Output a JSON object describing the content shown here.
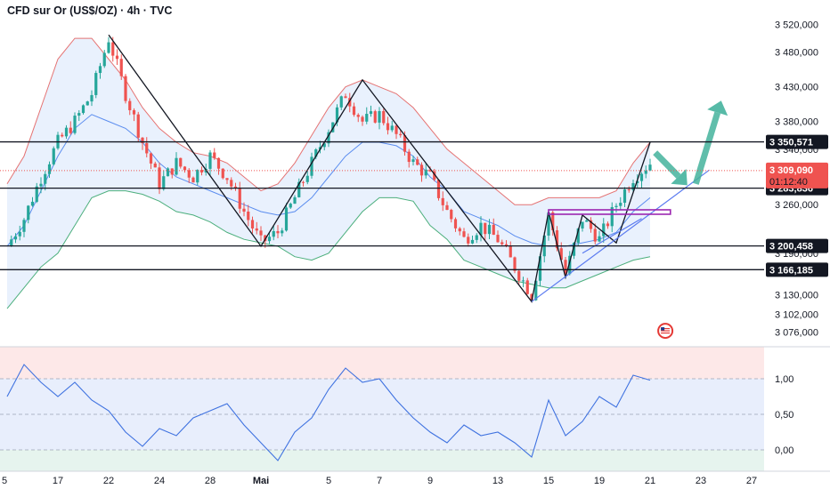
{
  "header": {
    "title": "CFD sur Or (US$/OZ) · 4h · TVC"
  },
  "flag_icon": "us-flag-icon",
  "colors": {
    "up": "#26a69a",
    "down": "#ef5350",
    "level": "#131722",
    "band_upper": "#e57373",
    "band_lower": "#4caf7d",
    "band_mid": "#5b8def",
    "band_fill": "#e3eefc",
    "oscillator": "#3f72e0",
    "arrow": "#45b39d",
    "purple": "#9c27b0",
    "trendline": "#5b7bf0"
  },
  "chart_data": {
    "type": "candlestick",
    "symbol": "CFD sur Or (US$/OZ)",
    "timeframe": "4h",
    "source": "TVC",
    "price_axis": {
      "range": [
        3055,
        3545
      ],
      "ticks": [
        3520,
        3480,
        3430,
        3380,
        3340,
        3260,
        3190,
        3130,
        3102,
        3076
      ],
      "tick_labels": [
        "3 520,000",
        "3 480,000",
        "3 430,000",
        "3 380,000",
        "3 340,000",
        "3 260,000",
        "3 190,000",
        "3 130,000",
        "3 102,000",
        "3 076,000"
      ]
    },
    "time_axis": {
      "labels": [
        "5",
        "17",
        "22",
        "24",
        "28",
        "Mai",
        "5",
        "7",
        "9",
        "13",
        "15",
        "19",
        "21",
        "23",
        "27"
      ],
      "positions": [
        0,
        3,
        6,
        9,
        12,
        15,
        19,
        22,
        25,
        29,
        32,
        35,
        38,
        41,
        44
      ]
    },
    "horizontal_levels": [
      {
        "value": 3350.571,
        "label": "3 350,571"
      },
      {
        "value": 3283.836,
        "label": "3 283,836"
      },
      {
        "value": 3200.458,
        "label": "3 200,458"
      },
      {
        "value": 3166.185,
        "label": "3 166,185"
      }
    ],
    "current_price": {
      "value": 3309.09,
      "label": "3 309,090",
      "countdown": "01:12:40"
    },
    "close_path": [
      [
        0,
        3200
      ],
      [
        1,
        3240
      ],
      [
        2,
        3300
      ],
      [
        3,
        3350
      ],
      [
        4,
        3380
      ],
      [
        5,
        3420
      ],
      [
        6,
        3500
      ],
      [
        7,
        3420
      ],
      [
        8,
        3350
      ],
      [
        9,
        3290
      ],
      [
        10,
        3320
      ],
      [
        11,
        3300
      ],
      [
        12,
        3330
      ],
      [
        13,
        3300
      ],
      [
        14,
        3250
      ],
      [
        15,
        3205
      ],
      [
        16,
        3220
      ],
      [
        17,
        3270
      ],
      [
        18,
        3320
      ],
      [
        19,
        3370
      ],
      [
        20,
        3420
      ],
      [
        21,
        3380
      ],
      [
        22,
        3390
      ],
      [
        23,
        3360
      ],
      [
        24,
        3320
      ],
      [
        25,
        3300
      ],
      [
        26,
        3250
      ],
      [
        27,
        3210
      ],
      [
        28,
        3230
      ],
      [
        29,
        3210
      ],
      [
        30,
        3170
      ],
      [
        31,
        3130
      ],
      [
        32,
        3245
      ],
      [
        33,
        3160
      ],
      [
        34,
        3240
      ],
      [
        35,
        3210
      ],
      [
        36,
        3260
      ],
      [
        37,
        3300
      ],
      [
        38,
        3320
      ]
    ],
    "bollinger": {
      "upper": [
        [
          0,
          3290
        ],
        [
          1,
          3330
        ],
        [
          2,
          3400
        ],
        [
          3,
          3470
        ],
        [
          4,
          3500
        ],
        [
          5,
          3500
        ],
        [
          6,
          3470
        ],
        [
          7,
          3440
        ],
        [
          8,
          3400
        ],
        [
          9,
          3370
        ],
        [
          10,
          3350
        ],
        [
          11,
          3335
        ],
        [
          12,
          3330
        ],
        [
          13,
          3320
        ],
        [
          14,
          3300
        ],
        [
          15,
          3280
        ],
        [
          16,
          3290
        ],
        [
          17,
          3320
        ],
        [
          18,
          3360
        ],
        [
          19,
          3400
        ],
        [
          20,
          3430
        ],
        [
          21,
          3440
        ],
        [
          22,
          3430
        ],
        [
          23,
          3420
        ],
        [
          24,
          3400
        ],
        [
          25,
          3370
        ],
        [
          26,
          3340
        ],
        [
          27,
          3320
        ],
        [
          28,
          3300
        ],
        [
          29,
          3280
        ],
        [
          30,
          3260
        ],
        [
          31,
          3260
        ],
        [
          32,
          3270
        ],
        [
          33,
          3270
        ],
        [
          34,
          3270
        ],
        [
          35,
          3270
        ],
        [
          36,
          3280
        ],
        [
          37,
          3320
        ],
        [
          38,
          3350
        ]
      ],
      "middle": [
        [
          0,
          3200
        ],
        [
          1,
          3230
        ],
        [
          2,
          3280
        ],
        [
          3,
          3330
        ],
        [
          4,
          3370
        ],
        [
          5,
          3390
        ],
        [
          6,
          3380
        ],
        [
          7,
          3370
        ],
        [
          8,
          3350
        ],
        [
          9,
          3320
        ],
        [
          10,
          3300
        ],
        [
          11,
          3290
        ],
        [
          12,
          3280
        ],
        [
          13,
          3270
        ],
        [
          14,
          3260
        ],
        [
          15,
          3250
        ],
        [
          16,
          3245
        ],
        [
          17,
          3250
        ],
        [
          18,
          3270
        ],
        [
          19,
          3300
        ],
        [
          20,
          3330
        ],
        [
          21,
          3350
        ],
        [
          22,
          3350
        ],
        [
          23,
          3345
        ],
        [
          24,
          3330
        ],
        [
          25,
          3300
        ],
        [
          26,
          3280
        ],
        [
          27,
          3250
        ],
        [
          28,
          3240
        ],
        [
          29,
          3230
        ],
        [
          30,
          3215
        ],
        [
          31,
          3205
        ],
        [
          32,
          3200
        ],
        [
          33,
          3200
        ],
        [
          34,
          3205
        ],
        [
          35,
          3210
        ],
        [
          36,
          3220
        ],
        [
          37,
          3250
        ],
        [
          38,
          3270
        ]
      ],
      "lower": [
        [
          0,
          3110
        ],
        [
          1,
          3140
        ],
        [
          2,
          3170
        ],
        [
          3,
          3190
        ],
        [
          4,
          3230
        ],
        [
          5,
          3270
        ],
        [
          6,
          3280
        ],
        [
          7,
          3280
        ],
        [
          8,
          3275
        ],
        [
          9,
          3265
        ],
        [
          10,
          3250
        ],
        [
          11,
          3245
        ],
        [
          12,
          3235
        ],
        [
          13,
          3220
        ],
        [
          14,
          3210
        ],
        [
          15,
          3205
        ],
        [
          16,
          3200
        ],
        [
          17,
          3185
        ],
        [
          18,
          3180
        ],
        [
          19,
          3190
        ],
        [
          20,
          3220
        ],
        [
          21,
          3250
        ],
        [
          22,
          3270
        ],
        [
          23,
          3270
        ],
        [
          24,
          3265
        ],
        [
          25,
          3230
        ],
        [
          26,
          3210
        ],
        [
          27,
          3180
        ],
        [
          28,
          3170
        ],
        [
          29,
          3160
        ],
        [
          30,
          3150
        ],
        [
          31,
          3145
        ],
        [
          32,
          3140
        ],
        [
          33,
          3140
        ],
        [
          34,
          3150
        ],
        [
          35,
          3160
        ],
        [
          36,
          3170
        ],
        [
          37,
          3180
        ],
        [
          38,
          3185
        ]
      ]
    },
    "zigzag": [
      [
        6,
        3505
      ],
      [
        15,
        3200
      ],
      [
        21,
        3440
      ],
      [
        31,
        3120
      ],
      [
        32,
        3250
      ],
      [
        33,
        3155
      ],
      [
        34,
        3245
      ],
      [
        36,
        3205
      ],
      [
        38,
        3350
      ]
    ],
    "rsi_oscillator": {
      "ticks": [
        1.0,
        0.5,
        0.0
      ],
      "tick_labels": [
        "1,00",
        "0,50",
        "0,00"
      ],
      "range": [
        -0.3,
        1.45
      ],
      "values": [
        [
          0,
          0.75
        ],
        [
          1,
          1.2
        ],
        [
          2,
          0.95
        ],
        [
          3,
          0.75
        ],
        [
          4,
          0.95
        ],
        [
          5,
          0.7
        ],
        [
          6,
          0.55
        ],
        [
          7,
          0.25
        ],
        [
          8,
          0.05
        ],
        [
          9,
          0.3
        ],
        [
          10,
          0.2
        ],
        [
          11,
          0.45
        ],
        [
          12,
          0.55
        ],
        [
          13,
          0.65
        ],
        [
          14,
          0.35
        ],
        [
          15,
          0.1
        ],
        [
          16,
          -0.15
        ],
        [
          17,
          0.25
        ],
        [
          18,
          0.45
        ],
        [
          19,
          0.85
        ],
        [
          20,
          1.15
        ],
        [
          21,
          0.95
        ],
        [
          22,
          1.0
        ],
        [
          23,
          0.7
        ],
        [
          24,
          0.45
        ],
        [
          25,
          0.25
        ],
        [
          26,
          0.1
        ],
        [
          27,
          0.35
        ],
        [
          28,
          0.2
        ],
        [
          29,
          0.25
        ],
        [
          30,
          0.1
        ],
        [
          31,
          -0.1
        ],
        [
          32,
          0.7
        ],
        [
          33,
          0.2
        ],
        [
          34,
          0.4
        ],
        [
          35,
          0.75
        ],
        [
          36,
          0.6
        ],
        [
          37,
          1.05
        ],
        [
          38,
          0.98
        ]
      ]
    }
  }
}
